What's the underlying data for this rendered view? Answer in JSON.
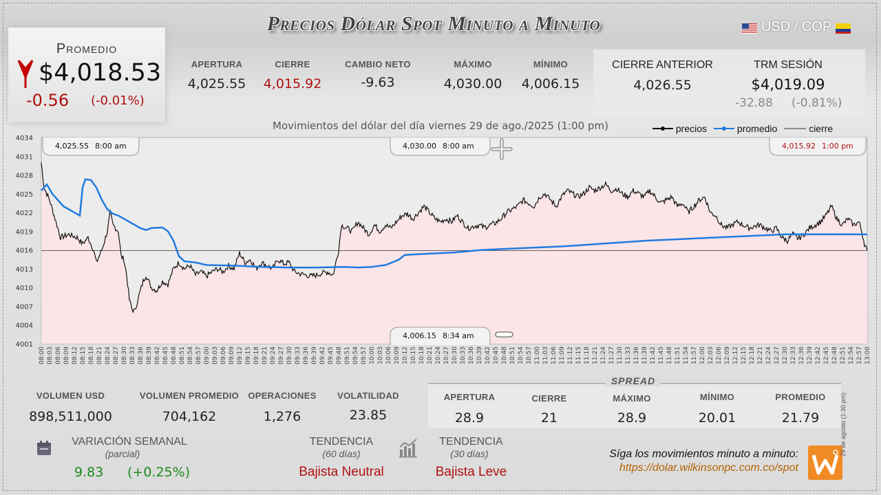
{
  "title": "Precios Dólar Spot Minuto a Minuto",
  "pair": "USD / COP",
  "promedio": {
    "label": "Promedio",
    "value": "$4,018.53",
    "change": "-0.56",
    "change_pct": "(-0.01%)"
  },
  "stats": [
    {
      "label": "APERTURA",
      "value": "4,025.55",
      "color": "#222"
    },
    {
      "label": "CIERRE",
      "value": "4,015.92",
      "color": "#b01010"
    },
    {
      "label": "CAMBIO NETO",
      "value": "-9.63",
      "color": "#222"
    },
    {
      "label": "MÁXIMO",
      "value": "4,030.00",
      "color": "#222"
    },
    {
      "label": "MÍNIMO",
      "value": "4,006.15",
      "color": "#222"
    }
  ],
  "cierre_anterior": {
    "label": "CIERRE ANTERIOR",
    "value": "4,026.55"
  },
  "trm": {
    "label": "TRM SESIÓN",
    "value": "$4,019.09",
    "change": "-32.88",
    "change_pct": "(-0.81%)"
  },
  "chart_data": {
    "type": "line",
    "title": "Movimientos del dólar del día viernes 29 de ago./2025 (1:00 pm)",
    "legend": [
      "precios",
      "promedio",
      "cierre"
    ],
    "legend_position": "top-right",
    "ylim": [
      4001,
      4034
    ],
    "yticks": [
      4001,
      4004,
      4007,
      4010,
      4013,
      4016,
      4019,
      4022,
      4025,
      4028,
      4031,
      4034
    ],
    "xlim_minutes": [
      0,
      300
    ],
    "xticks": [
      "08:00",
      "08:03",
      "08:06",
      "08:09",
      "08:12",
      "08:15",
      "08:18",
      "08:21",
      "08:24",
      "08:27",
      "08:30",
      "08:33",
      "08:36",
      "08:39",
      "08:42",
      "08:45",
      "08:48",
      "08:51",
      "08:54",
      "08:57",
      "09:00",
      "09:03",
      "09:06",
      "09:09",
      "09:12",
      "09:15",
      "09:18",
      "09:21",
      "09:24",
      "09:27",
      "09:30",
      "09:33",
      "09:36",
      "09:39",
      "09:42",
      "09:45",
      "09:48",
      "09:51",
      "09:54",
      "09:57",
      "10:00",
      "10:03",
      "10:06",
      "10:09",
      "10:12",
      "10:15",
      "10:18",
      "10:21",
      "10:24",
      "10:27",
      "10:30",
      "10:33",
      "10:36",
      "10:39",
      "10:42",
      "10:45",
      "10:48",
      "10:51",
      "10:54",
      "10:57",
      "11:00",
      "11:03",
      "11:06",
      "11:09",
      "11:12",
      "11:15",
      "11:18",
      "11:21",
      "11:24",
      "11:27",
      "11:30",
      "11:33",
      "11:36",
      "11:39",
      "11:42",
      "11:45",
      "11:48",
      "11:51",
      "11:54",
      "11:57",
      "12:00",
      "12:03",
      "12:06",
      "12:09",
      "12:12",
      "12:15",
      "12:18",
      "12:21",
      "12:24",
      "12:27",
      "12:30",
      "12:33",
      "12:36",
      "12:39",
      "12:42",
      "12:45",
      "12:48",
      "12:51",
      "12:54",
      "12:57",
      "13:00"
    ],
    "cierre_level": 4015.92,
    "precios": [
      [
        0,
        4030
      ],
      [
        1,
        4026
      ],
      [
        3,
        4024
      ],
      [
        5,
        4021
      ],
      [
        7,
        4018
      ],
      [
        10,
        4018.5
      ],
      [
        13,
        4018
      ],
      [
        15,
        4017
      ],
      [
        17,
        4018
      ],
      [
        19,
        4016
      ],
      [
        20,
        4014
      ],
      [
        22,
        4016
      ],
      [
        24,
        4019
      ],
      [
        25,
        4022
      ],
      [
        26,
        4020
      ],
      [
        28,
        4019
      ],
      [
        29,
        4015
      ],
      [
        30,
        4014.5
      ],
      [
        31,
        4012
      ],
      [
        32,
        4008
      ],
      [
        33,
        4006.5
      ],
      [
        34,
        4006.2
      ],
      [
        35,
        4008
      ],
      [
        36,
        4009.5
      ],
      [
        37,
        4011
      ],
      [
        38,
        4012
      ],
      [
        40,
        4010
      ],
      [
        42,
        4009.5
      ],
      [
        44,
        4011
      ],
      [
        46,
        4010.5
      ],
      [
        48,
        4013
      ],
      [
        50,
        4014
      ],
      [
        52,
        4013
      ],
      [
        54,
        4013.5
      ],
      [
        56,
        4012
      ],
      [
        58,
        4012.5
      ],
      [
        60,
        4011.8
      ],
      [
        62,
        4012.5
      ],
      [
        64,
        4013
      ],
      [
        66,
        4012.5
      ],
      [
        68,
        4013.5
      ],
      [
        70,
        4013
      ],
      [
        72,
        4015.5
      ],
      [
        74,
        4014
      ],
      [
        76,
        4014.5
      ],
      [
        78,
        4013
      ],
      [
        80,
        4014
      ],
      [
        82,
        4013.5
      ],
      [
        84,
        4013
      ],
      [
        86,
        4014.5
      ],
      [
        88,
        4013.8
      ],
      [
        90,
        4014
      ],
      [
        92,
        4012.5
      ],
      [
        94,
        4012.2
      ],
      [
        96,
        4012
      ],
      [
        98,
        4011.8
      ],
      [
        100,
        4012
      ],
      [
        102,
        4012.3
      ],
      [
        104,
        4012.5
      ],
      [
        106,
        4012
      ],
      [
        107,
        4014
      ],
      [
        108,
        4016
      ],
      [
        109,
        4020
      ],
      [
        111,
        4019.5
      ],
      [
        113,
        4019
      ],
      [
        115,
        4020.5
      ],
      [
        117,
        4019.5
      ],
      [
        119,
        4018.5
      ],
      [
        121,
        4020
      ],
      [
        123,
        4019
      ],
      [
        125,
        4020
      ],
      [
        127,
        4019.5
      ],
      [
        129,
        4020.5
      ],
      [
        131,
        4021.5
      ],
      [
        133,
        4021.8
      ],
      [
        135,
        4021
      ],
      [
        137,
        4022
      ],
      [
        139,
        4023
      ],
      [
        141,
        4022
      ],
      [
        143,
        4021
      ],
      [
        145,
        4020.5
      ],
      [
        147,
        4021
      ],
      [
        149,
        4020.5
      ],
      [
        151,
        4021.5
      ],
      [
        153,
        4020.5
      ],
      [
        155,
        4019.5
      ],
      [
        157,
        4019.8
      ],
      [
        159,
        4020
      ],
      [
        161,
        4019.6
      ],
      [
        163,
        4020
      ],
      [
        165,
        4020.3
      ],
      [
        167,
        4021
      ],
      [
        169,
        4022
      ],
      [
        171,
        4022.5
      ],
      [
        173,
        4023
      ],
      [
        175,
        4024
      ],
      [
        177,
        4023.5
      ],
      [
        179,
        4023
      ],
      [
        181,
        4024.5
      ],
      [
        183,
        4025
      ],
      [
        185,
        4024
      ],
      [
        187,
        4023
      ],
      [
        189,
        4024.5
      ],
      [
        191,
        4025.5
      ],
      [
        193,
        4025
      ],
      [
        195,
        4024.5
      ],
      [
        197,
        4025
      ],
      [
        199,
        4026
      ],
      [
        201,
        4025.5
      ],
      [
        203,
        4026
      ],
      [
        205,
        4026.5
      ],
      [
        207,
        4025.5
      ],
      [
        209,
        4025.8
      ],
      [
        211,
        4025
      ],
      [
        213,
        4024.5
      ],
      [
        215,
        4025.5
      ],
      [
        217,
        4025
      ],
      [
        219,
        4024.5
      ],
      [
        221,
        4025.5
      ],
      [
        223,
        4024.5
      ],
      [
        225,
        4023.5
      ],
      [
        227,
        4024
      ],
      [
        229,
        4024.5
      ],
      [
        231,
        4023
      ],
      [
        233,
        4023.5
      ],
      [
        235,
        4022
      ],
      [
        237,
        4023
      ],
      [
        239,
        4024
      ],
      [
        241,
        4024.5
      ],
      [
        243,
        4022
      ],
      [
        245,
        4021.5
      ],
      [
        247,
        4020
      ],
      [
        249,
        4019.5
      ],
      [
        251,
        4020
      ],
      [
        253,
        4020.5
      ],
      [
        255,
        4020
      ],
      [
        257,
        4019.5
      ],
      [
        259,
        4019.8
      ],
      [
        261,
        4020
      ],
      [
        263,
        4019.5
      ],
      [
        265,
        4019
      ],
      [
        267,
        4019.5
      ],
      [
        269,
        4018
      ],
      [
        271,
        4017.5
      ],
      [
        273,
        4018.5
      ],
      [
        275,
        4017.8
      ],
      [
        277,
        4018.5
      ],
      [
        279,
        4019.5
      ],
      [
        281,
        4020
      ],
      [
        283,
        4020.5
      ],
      [
        285,
        4021.5
      ],
      [
        287,
        4023
      ],
      [
        289,
        4021
      ],
      [
        291,
        4020
      ],
      [
        293,
        4021
      ],
      [
        295,
        4020
      ],
      [
        297,
        4020.5
      ],
      [
        298,
        4019
      ],
      [
        299,
        4017
      ],
      [
        300,
        4015.92
      ]
    ],
    "promedio": [
      [
        0,
        4025.5
      ],
      [
        2,
        4026.5
      ],
      [
        4,
        4025
      ],
      [
        6,
        4024
      ],
      [
        8,
        4023
      ],
      [
        10,
        4022.5
      ],
      [
        12,
        4022
      ],
      [
        14,
        4021.5
      ],
      [
        15,
        4026
      ],
      [
        16,
        4027.3
      ],
      [
        18,
        4027.2
      ],
      [
        20,
        4026
      ],
      [
        22,
        4024
      ],
      [
        24,
        4022.5
      ],
      [
        26,
        4021.8
      ],
      [
        28,
        4021.5
      ],
      [
        30,
        4021
      ],
      [
        32,
        4020.5
      ],
      [
        34,
        4020
      ],
      [
        36,
        4019.5
      ],
      [
        38,
        4019.2
      ],
      [
        40,
        4019.5
      ],
      [
        44,
        4019.6
      ],
      [
        46,
        4019
      ],
      [
        48,
        4017.5
      ],
      [
        50,
        4015
      ],
      [
        52,
        4014.2
      ],
      [
        56,
        4014
      ],
      [
        60,
        4013.6
      ],
      [
        70,
        4013.5
      ],
      [
        80,
        4013.3
      ],
      [
        90,
        4013.2
      ],
      [
        100,
        4013.2
      ],
      [
        110,
        4013.3
      ],
      [
        115,
        4013.2
      ],
      [
        120,
        4013.3
      ],
      [
        125,
        4013.6
      ],
      [
        128,
        4014.1
      ],
      [
        130,
        4014.5
      ],
      [
        132,
        4015.2
      ],
      [
        140,
        4015.4
      ],
      [
        150,
        4015.6
      ],
      [
        160,
        4016.0
      ],
      [
        170,
        4016.2
      ],
      [
        180,
        4016.4
      ],
      [
        190,
        4016.6
      ],
      [
        200,
        4016.9
      ],
      [
        210,
        4017.2
      ],
      [
        220,
        4017.5
      ],
      [
        230,
        4017.7
      ],
      [
        240,
        4017.9
      ],
      [
        250,
        4018.1
      ],
      [
        260,
        4018.3
      ],
      [
        270,
        4018.5
      ],
      [
        280,
        4018.5
      ],
      [
        290,
        4018.5
      ],
      [
        300,
        4018.5
      ]
    ],
    "annotations": [
      {
        "value": "4,025.55",
        "time": "8:00 am"
      },
      {
        "value": "4,030.00",
        "time": "8:00 am"
      },
      {
        "value": "4,015.92",
        "time": "1:00 pm"
      },
      {
        "value": "4,006.15",
        "time": "8:34 am"
      }
    ]
  },
  "bottom_stats": [
    {
      "label": "VOLUMEN USD",
      "value": "898,511,000"
    },
    {
      "label": "VOLUMEN PROMEDIO",
      "value": "704,162"
    },
    {
      "label": "OPERACIONES",
      "value": "1,276"
    },
    {
      "label": "VOLATILIDAD",
      "value": "23.85"
    }
  ],
  "spread": {
    "title": "SPREAD",
    "items": [
      {
        "label": "APERTURA",
        "value": "28.9"
      },
      {
        "label": "CIERRE",
        "value": "21"
      },
      {
        "label": "MÁXIMO",
        "value": "28.9"
      },
      {
        "label": "MÍNIMO",
        "value": "20.01"
      },
      {
        "label": "PROMEDIO",
        "value": "21.79"
      }
    ]
  },
  "variacion": {
    "label": "VARIACIÓN SEMANAL",
    "sub": "(parcial)",
    "value": "9.83",
    "pct": "(+0.25%)"
  },
  "tendencia60": {
    "label": "TENDENCIA",
    "sub": "(60 días)",
    "value": "Bajista Neutral"
  },
  "tendencia30": {
    "label": "TENDENCIA",
    "sub": "(30 días)",
    "value": "Bajista Leve"
  },
  "footer": {
    "text": "Síga los movimientos minuto a minuto:",
    "url": "https://dolar.wilkinsonpc.com.co/spot",
    "side": "29 de agosto (1:30 pm)"
  },
  "colors": {
    "precios": "#111111",
    "promedio": "#1f7ae0",
    "cierre": "#333333",
    "fill": "#fde4e6",
    "brand": "#f08a24"
  }
}
